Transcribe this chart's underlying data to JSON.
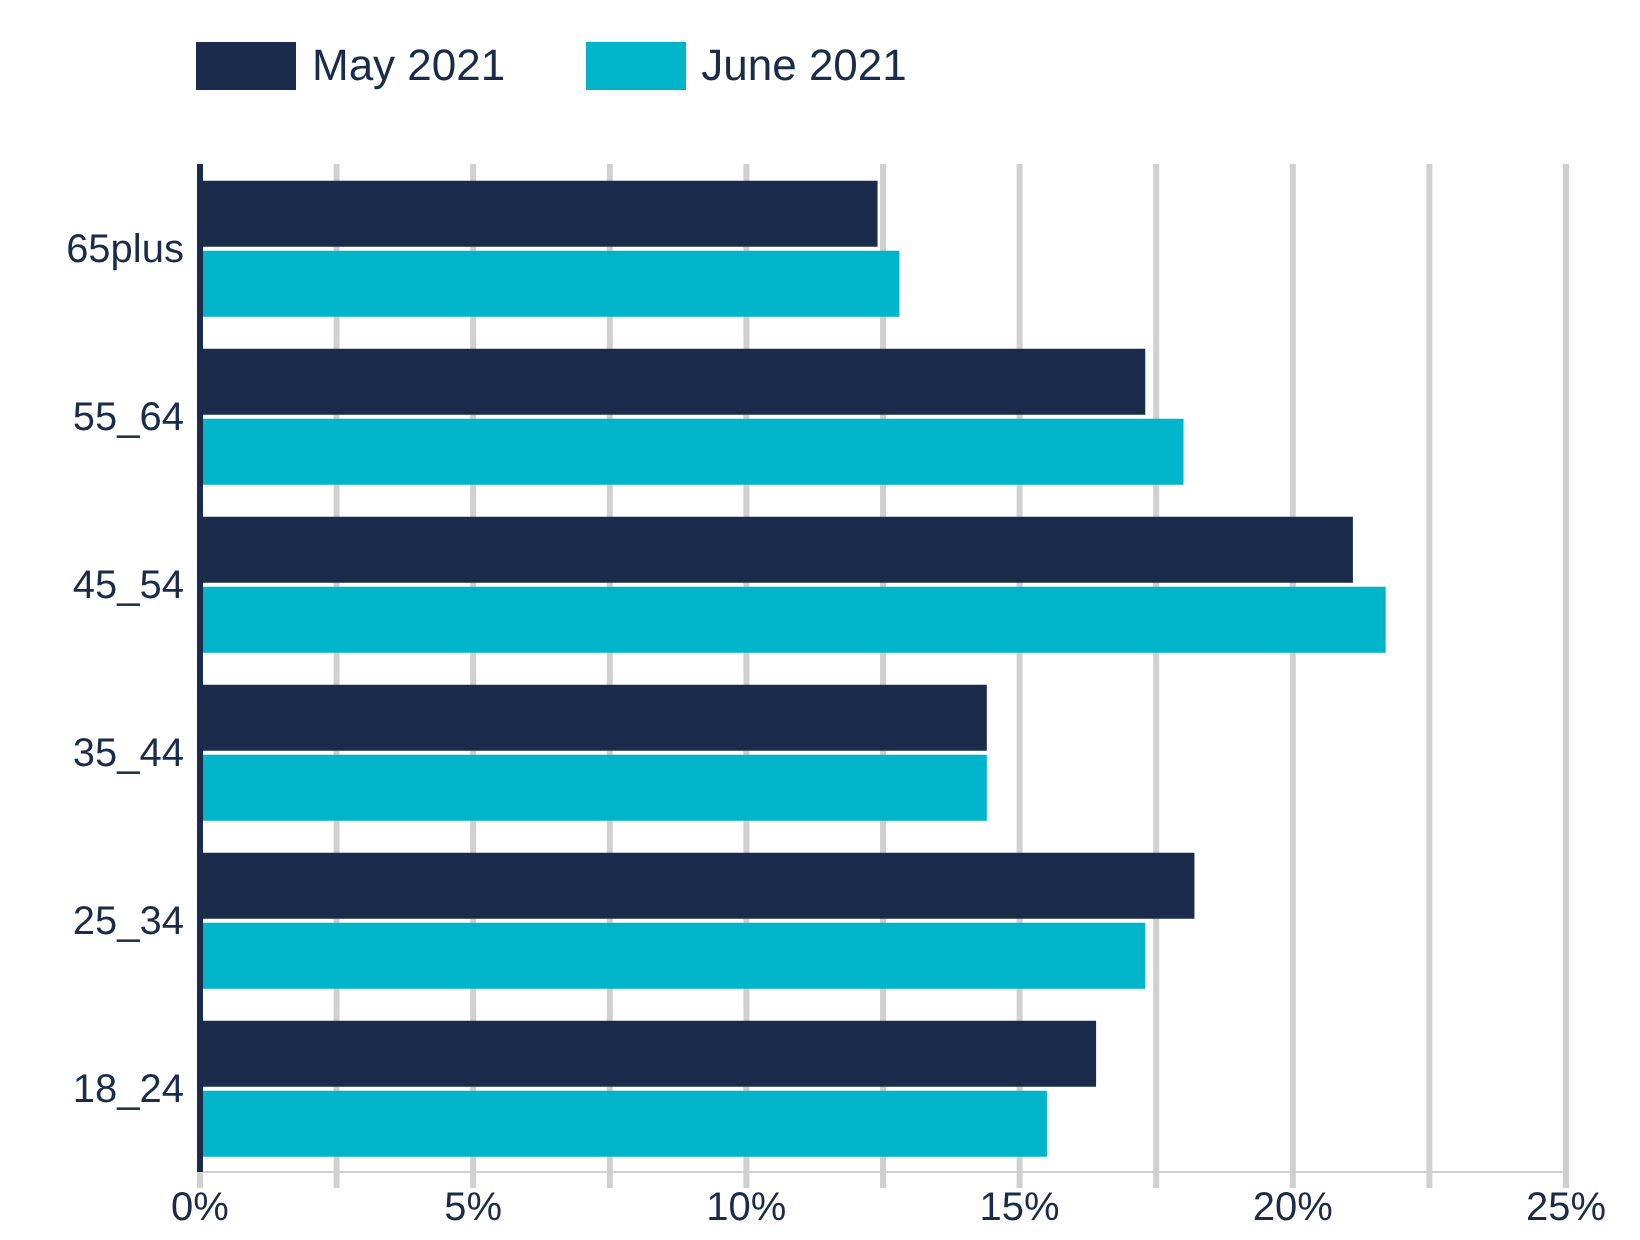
{
  "chart_data": {
    "type": "bar",
    "orientation": "horizontal",
    "categories": [
      "65plus",
      "55_64",
      "45_54",
      "35_44",
      "25_34",
      "18_24"
    ],
    "series": [
      {
        "name": "May 2021",
        "color": "#1b2b4b",
        "values": [
          12.4,
          17.3,
          21.1,
          14.4,
          18.2,
          16.4
        ]
      },
      {
        "name": "June 2021",
        "color": "#00b5c9",
        "values": [
          12.8,
          18.0,
          21.7,
          14.4,
          17.3,
          15.5
        ]
      }
    ],
    "xlim": [
      0,
      25
    ],
    "xticks": [
      {
        "value": 0,
        "label": "0%"
      },
      {
        "value": 2.5,
        "label": null
      },
      {
        "value": 5,
        "label": "5%"
      },
      {
        "value": 7.5,
        "label": null
      },
      {
        "value": 10,
        "label": "10%"
      },
      {
        "value": 12.5,
        "label": null
      },
      {
        "value": 15,
        "label": "15%"
      },
      {
        "value": 17.5,
        "label": null
      },
      {
        "value": 20,
        "label": "20%"
      },
      {
        "value": 22.5,
        "label": null
      },
      {
        "value": 25,
        "label": "25%"
      }
    ],
    "grid": "x",
    "legend": "top left"
  }
}
